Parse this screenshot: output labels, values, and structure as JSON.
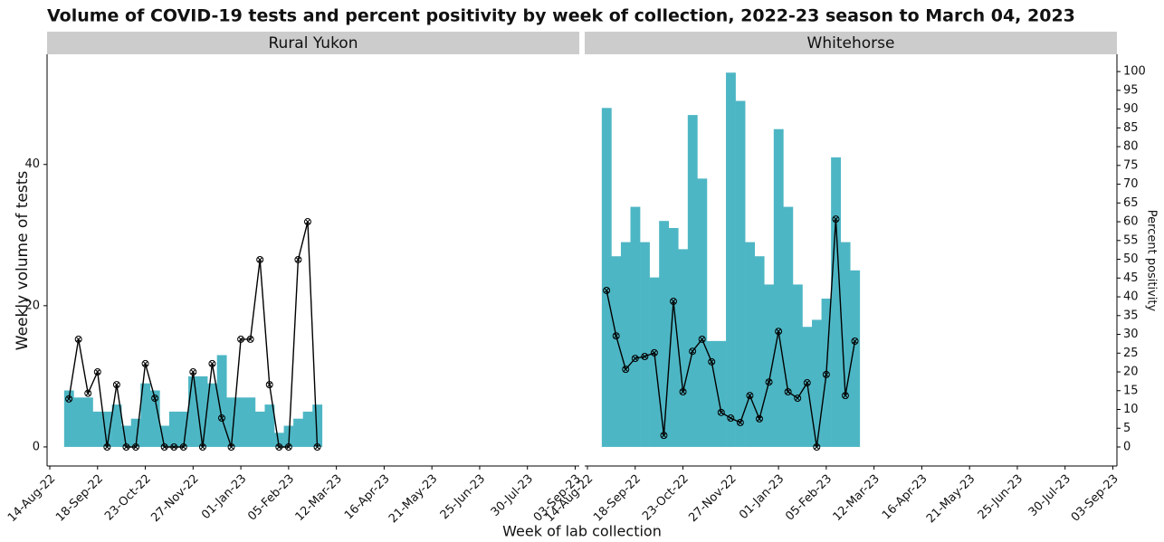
{
  "title": "Volume of COVID-19 tests and percent positivity by week of collection, 2022-23 season to March 04, 2023",
  "x_label": "Week of lab collection",
  "y_label": "Weekly volume of tests",
  "y2_label": "Percent positivity",
  "chart_data": [
    {
      "type": "bar_line",
      "title": "Rural Yukon",
      "x": [
        "28-Aug-22",
        "04-Sep-22",
        "11-Sep-22",
        "18-Sep-22",
        "25-Sep-22",
        "02-Oct-22",
        "09-Oct-22",
        "16-Oct-22",
        "23-Oct-22",
        "30-Oct-22",
        "06-Nov-22",
        "13-Nov-22",
        "20-Nov-22",
        "27-Nov-22",
        "04-Dec-22",
        "11-Dec-22",
        "18-Dec-22",
        "25-Dec-22",
        "01-Jan-23",
        "08-Jan-23",
        "15-Jan-23",
        "22-Jan-23",
        "29-Jan-23",
        "05-Feb-23",
        "12-Feb-23",
        "19-Feb-23",
        "26-Feb-23"
      ],
      "series": [
        {
          "color": "#4db6c4",
          "values": [
            8,
            7,
            7,
            5,
            5,
            6,
            3,
            4,
            9,
            8,
            3,
            5,
            5,
            10,
            10,
            9,
            13,
            7,
            7,
            7,
            5,
            6,
            2,
            3,
            4,
            5,
            6
          ]
        },
        {
          "color": "#000000",
          "axis": "y2",
          "values": [
            12.8,
            28.7,
            14.3,
            20,
            0,
            16.6,
            0,
            0,
            22.2,
            13,
            0,
            0,
            0,
            20,
            0,
            22.2,
            7.7,
            0,
            28.7,
            28.7,
            49.9,
            16.6,
            0,
            0,
            49.9,
            60,
            0
          ]
        }
      ],
      "xlim": [
        "12-Aug-22",
        "06-Sep-23"
      ],
      "xticks": [
        "14-Aug-22",
        "18-Sep-22",
        "23-Oct-22",
        "27-Nov-22",
        "01-Jan-23",
        "05-Feb-23",
        "12-Mar-23",
        "16-Apr-23",
        "21-May-23",
        "25-Jun-23",
        "30-Jul-23",
        "03-Sep-23"
      ],
      "ylim": [
        -2.7,
        55.6
      ],
      "yticks": [
        0,
        20,
        40
      ],
      "y2lim": [
        -5.06,
        104.6
      ]
    },
    {
      "type": "bar_line",
      "title": "Whitehorse",
      "x": [
        "28-Aug-22",
        "04-Sep-22",
        "11-Sep-22",
        "18-Sep-22",
        "25-Sep-22",
        "02-Oct-22",
        "09-Oct-22",
        "16-Oct-22",
        "23-Oct-22",
        "30-Oct-22",
        "06-Nov-22",
        "13-Nov-22",
        "20-Nov-22",
        "27-Nov-22",
        "04-Dec-22",
        "11-Dec-22",
        "18-Dec-22",
        "25-Dec-22",
        "01-Jan-23",
        "08-Jan-23",
        "15-Jan-23",
        "22-Jan-23",
        "29-Jan-23",
        "05-Feb-23",
        "12-Feb-23",
        "19-Feb-23",
        "26-Feb-23"
      ],
      "series": [
        {
          "color": "#4db6c4",
          "values": [
            48,
            27,
            29,
            34,
            29,
            24,
            32,
            31,
            28,
            47,
            38,
            15,
            15,
            53,
            49,
            29,
            27,
            23,
            45,
            34,
            23,
            17,
            18,
            21,
            41,
            29,
            25
          ]
        },
        {
          "color": "#000000",
          "axis": "y2",
          "values": [
            41.7,
            29.6,
            20.7,
            23.6,
            24.1,
            25.1,
            3.1,
            38.8,
            14.7,
            25.5,
            28.7,
            22.7,
            9.2,
            7.7,
            6.5,
            13.7,
            7.5,
            17.3,
            30.8,
            14.7,
            13,
            17.1,
            0,
            19.3,
            60.7,
            13.7,
            28.2
          ]
        }
      ],
      "xlim": [
        "12-Aug-22",
        "06-Sep-23"
      ],
      "xticks": [
        "14-Aug-22",
        "18-Sep-22",
        "23-Oct-22",
        "27-Nov-22",
        "01-Jan-23",
        "05-Feb-23",
        "12-Mar-23",
        "16-Apr-23",
        "21-May-23",
        "25-Jun-23",
        "30-Jul-23",
        "03-Sep-23"
      ],
      "ylim": [
        -2.7,
        55.6
      ],
      "y2lim": [
        -5.06,
        104.6
      ],
      "y2ticks": [
        0,
        5,
        10,
        15,
        20,
        25,
        30,
        35,
        40,
        45,
        50,
        55,
        60,
        65,
        70,
        75,
        80,
        85,
        90,
        95,
        100
      ]
    }
  ]
}
